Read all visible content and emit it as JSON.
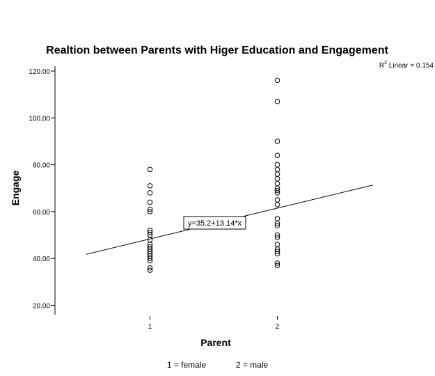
{
  "chart_data": {
    "type": "scatter",
    "title": "Realtion between Parents with Higer Education and Engagement",
    "xlabel": "Parent",
    "ylabel": "Engage",
    "x_ticks": [
      1,
      2
    ],
    "x_tick_labels": [
      "1",
      "2"
    ],
    "ylim": [
      15,
      125
    ],
    "y_ticks": [
      20,
      40,
      60,
      80,
      100,
      120
    ],
    "y_tick_labels": [
      "20.00",
      "40.00",
      "60.00",
      "80.00",
      "100.00",
      "120.00"
    ],
    "grid": false,
    "legend": "none",
    "series": [
      {
        "marker": "open-circle",
        "points": [
          [
            1,
            78
          ],
          [
            1,
            71
          ],
          [
            1,
            68
          ],
          [
            1,
            64
          ],
          [
            1,
            61
          ],
          [
            1,
            60
          ],
          [
            1,
            52
          ],
          [
            1,
            51
          ],
          [
            1,
            50
          ],
          [
            1,
            48
          ],
          [
            1,
            46
          ],
          [
            1,
            45
          ],
          [
            1,
            44
          ],
          [
            1,
            43
          ],
          [
            1,
            42
          ],
          [
            1,
            41
          ],
          [
            1,
            40
          ],
          [
            1,
            39
          ],
          [
            1,
            36
          ],
          [
            1,
            35
          ],
          [
            2,
            116
          ],
          [
            2,
            107
          ],
          [
            2,
            90
          ],
          [
            2,
            84
          ],
          [
            2,
            80
          ],
          [
            2,
            78
          ],
          [
            2,
            76
          ],
          [
            2,
            74
          ],
          [
            2,
            72
          ],
          [
            2,
            70
          ],
          [
            2,
            69
          ],
          [
            2,
            68
          ],
          [
            2,
            65
          ],
          [
            2,
            63
          ],
          [
            2,
            57
          ],
          [
            2,
            55
          ],
          [
            2,
            54
          ],
          [
            2,
            50
          ],
          [
            2,
            49
          ],
          [
            2,
            46
          ],
          [
            2,
            44
          ],
          [
            2,
            43
          ],
          [
            2,
            42
          ],
          [
            2,
            38
          ],
          [
            2,
            37
          ]
        ]
      }
    ],
    "fit_line": {
      "intercept": 35.2,
      "slope": 13.14,
      "x_range": [
        0.5,
        2.75
      ],
      "equation_label": "y=35.2+13.14*x",
      "r2_label": {
        "prefix": "R",
        "sup": "2",
        "suffix": " Linear = 0.154"
      }
    },
    "footnote_labels": [
      "1 = female",
      "2 = male"
    ]
  }
}
